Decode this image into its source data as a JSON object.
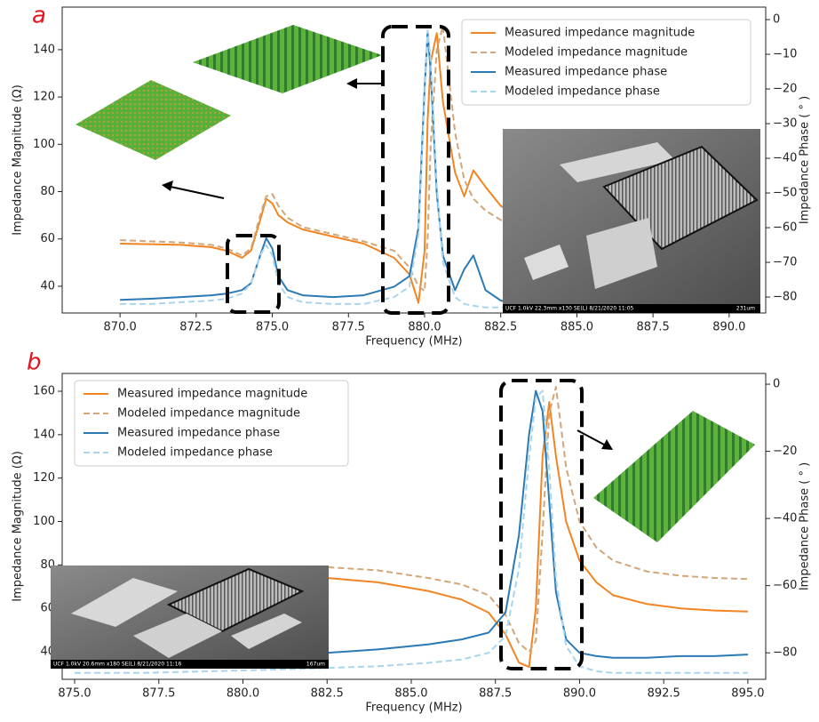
{
  "chart_data": [
    {
      "type": "line",
      "panel_label": "a",
      "xlabel": "Frequency (MHz)",
      "ylabel": "Impedance Magnitude (Ω)",
      "y2label": "Impedance Phase ( ° )",
      "x": [
        870,
        871,
        872,
        873,
        873.5,
        874,
        874.3,
        874.6,
        874.8,
        875,
        875.2,
        875.5,
        876,
        877,
        878,
        879,
        879.5,
        879.8,
        880,
        880.1,
        880.2,
        880.4,
        880.6,
        881,
        881.3,
        881.6,
        882,
        882.5,
        883,
        884,
        885,
        886,
        887,
        888,
        889,
        890,
        890.5
      ],
      "series": [
        {
          "name": "Measured impedance magnitude",
          "color": "#f28522",
          "linestyle": "solid",
          "axis": "y",
          "values": [
            58,
            57.8,
            57.5,
            56.5,
            55,
            52,
            55,
            68,
            77,
            75,
            70,
            67,
            64,
            61,
            58,
            52,
            45,
            33,
            55,
            110,
            135,
            147,
            118,
            88,
            78,
            89,
            82,
            74,
            70,
            65,
            62,
            60.5,
            59.5,
            59,
            58.5,
            58,
            58
          ]
        },
        {
          "name": "Modeled impedance magnitude",
          "color": "#d2a679",
          "linestyle": "dashed",
          "axis": "y",
          "values": [
            59.5,
            59,
            58.5,
            57.5,
            56,
            53,
            56,
            70,
            78,
            79,
            74,
            69,
            65,
            62,
            59,
            55,
            48,
            40,
            38,
            60,
            100,
            140,
            150,
            105,
            85,
            77,
            72,
            68,
            66,
            63.5,
            62.5,
            62,
            61.5,
            61,
            61,
            61,
            61
          ]
        },
        {
          "name": "Measured impedance phase",
          "color": "#2a7ab5",
          "linestyle": "solid",
          "axis": "y2",
          "values": [
            -80.8,
            -80.5,
            -80,
            -79.5,
            -79,
            -78,
            -76,
            -68,
            -63,
            -66,
            -74,
            -78,
            -79.5,
            -80,
            -79.5,
            -77,
            -74,
            -60,
            -20,
            -3.8,
            -15,
            -50,
            -68,
            -78,
            -72,
            -68,
            -78,
            -81,
            -82,
            -82,
            -82,
            -82,
            -82,
            -82,
            -82,
            -82,
            -82
          ]
        },
        {
          "name": "Modeled impedance phase",
          "color": "#a9d5ec",
          "linestyle": "dashed",
          "axis": "y2",
          "values": [
            -82,
            -82,
            -81.5,
            -81,
            -80.5,
            -79,
            -76,
            -68,
            -65,
            -68,
            -76,
            -80,
            -81.5,
            -82,
            -82,
            -80,
            -77,
            -62,
            -22,
            -3,
            -12,
            -48,
            -70,
            -80,
            -82,
            -82.5,
            -83,
            -83,
            -83,
            -83,
            -83,
            -83,
            -83,
            -83,
            -83,
            -83,
            -83
          ]
        }
      ],
      "xlim": [
        868.1,
        891.2
      ],
      "xticks": [
        {
          "value": 870,
          "label": "870.0"
        },
        {
          "value": 872.5,
          "label": "872.5"
        },
        {
          "value": 875,
          "label": "875.0"
        },
        {
          "value": 877.5,
          "label": "877.5"
        },
        {
          "value": 880,
          "label": "880.0"
        },
        {
          "value": 882.5,
          "label": "882.5"
        },
        {
          "value": 885,
          "label": "885.0"
        },
        {
          "value": 887.5,
          "label": "887.5"
        },
        {
          "value": 890,
          "label": "890.0"
        }
      ],
      "ylim": [
        28.7,
        158
      ],
      "yticks": [
        40,
        60,
        80,
        100,
        120,
        140
      ],
      "y2lim": [
        -84.6,
        3.6
      ],
      "y2ticks": [
        {
          "value": -80,
          "label": "−80"
        },
        {
          "value": -70,
          "label": "−70"
        },
        {
          "value": -60,
          "label": "−60"
        },
        {
          "value": -50,
          "label": "−50"
        },
        {
          "value": -40,
          "label": "−40"
        },
        {
          "value": -30,
          "label": "−30"
        },
        {
          "value": -20,
          "label": "−20"
        },
        {
          "value": -10,
          "label": "−10"
        },
        0
      ],
      "legend": "upper right",
      "inset_text": [
        "UCF 1.0kV 22.3mm x130 SE(L) 8/21/2020 11:05",
        "231um"
      ]
    },
    {
      "type": "line",
      "panel_label": "b",
      "xlabel": "Frequency (MHz)",
      "ylabel": "Impedance Magnitude (Ω)",
      "y2label": "Impedance Phase ( ° )",
      "x": [
        875,
        877,
        879,
        881,
        882.5,
        884,
        885.5,
        886.5,
        887.3,
        887.8,
        888.2,
        888.5,
        888.7,
        888.9,
        889.1,
        889.3,
        889.6,
        890,
        890.5,
        891,
        892,
        893,
        894,
        895
      ],
      "series": [
        {
          "name": "Measured impedance magnitude",
          "color": "#f28522",
          "linestyle": "solid",
          "axis": "y",
          "values": [
            68,
            70,
            72,
            73.5,
            74,
            72,
            68,
            64,
            58,
            48,
            35,
            33,
            60,
            130,
            155,
            130,
            100,
            82,
            72,
            66,
            62,
            60,
            59,
            58.5
          ]
        },
        {
          "name": "Modeled impedance magnitude",
          "color": "#d2a679",
          "linestyle": "dashed",
          "axis": "y",
          "values": [
            72,
            75,
            77,
            78.5,
            79,
            77.5,
            74,
            71,
            66,
            57,
            44,
            40,
            45,
            95,
            150,
            162,
            125,
            100,
            88,
            82,
            77,
            75,
            74,
            73.5
          ]
        },
        {
          "name": "Measured impedance phase",
          "color": "#2a7ab5",
          "linestyle": "solid",
          "axis": "y2",
          "values": [
            -83,
            -82.5,
            -82,
            -81,
            -80,
            -79,
            -77.5,
            -76,
            -74,
            -68,
            -45,
            -15,
            -2,
            -8,
            -35,
            -62,
            -76,
            -80,
            -81,
            -81.5,
            -81.5,
            -81,
            -81,
            -80.5
          ]
        },
        {
          "name": "Modeled impedance phase",
          "color": "#a9d5ec",
          "linestyle": "dashed",
          "axis": "y2",
          "values": [
            -86,
            -86,
            -85.5,
            -85,
            -84.5,
            -84,
            -83,
            -82,
            -80,
            -75,
            -55,
            -22,
            -4,
            -2,
            -25,
            -58,
            -78,
            -84,
            -85.5,
            -86,
            -86,
            -86,
            -86,
            -86
          ]
        }
      ],
      "xlim": [
        874.63,
        895.53
      ],
      "xticks": [
        {
          "value": 875,
          "label": "875.0"
        },
        {
          "value": 877.5,
          "label": "877.5"
        },
        {
          "value": 880,
          "label": "880.0"
        },
        {
          "value": 882.5,
          "label": "882.5"
        },
        {
          "value": 885,
          "label": "885.0"
        },
        {
          "value": 887.5,
          "label": "887.5"
        },
        {
          "value": 890,
          "label": "890.0"
        },
        {
          "value": 892.5,
          "label": "892.5"
        },
        {
          "value": 895,
          "label": "895.0"
        }
      ],
      "ylim": [
        27.3,
        168.2
      ],
      "yticks": [
        40,
        60,
        80,
        100,
        120,
        140,
        160
      ],
      "y2lim": [
        -87.9,
        3.2
      ],
      "y2ticks": [
        {
          "value": -80,
          "label": "−80"
        },
        {
          "value": -60,
          "label": "−60"
        },
        {
          "value": -40,
          "label": "−40"
        },
        {
          "value": -20,
          "label": "−20"
        },
        0
      ],
      "legend": "upper left",
      "inset_text": [
        "UCF 1.0kV 20.6mm x180 SE(L) 8/21/2020 11:16",
        "167um"
      ]
    }
  ]
}
